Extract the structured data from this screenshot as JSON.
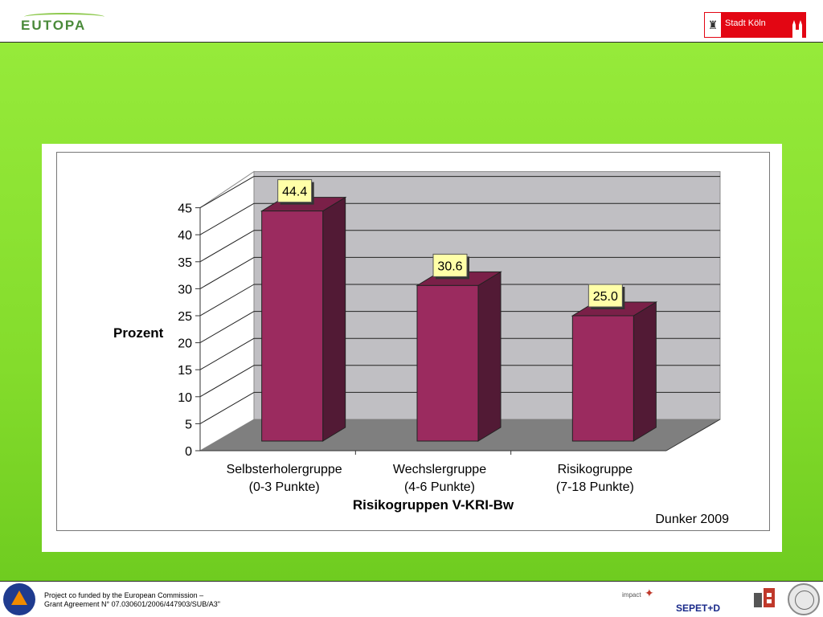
{
  "header": {
    "left_logo_text": "EUTOPA",
    "right_logo_text": "Stadt Köln"
  },
  "colors": {
    "slide_green": "#8ee136",
    "bar_front": "#9b2b5f",
    "bar_side": "#521a35",
    "bar_top": "#7a2048",
    "back_wall": "#c0bfc3",
    "floor": "#7f7f7f",
    "label_bg": "#ffffa8"
  },
  "chart_data": {
    "type": "bar",
    "categories": [
      [
        "Selbsterholergruppe",
        "(0-3 Punkte)"
      ],
      [
        "Wechslergruppe",
        "(4-6 Punkte)"
      ],
      [
        "Risikogruppe",
        "(7-18 Punkte)"
      ]
    ],
    "values": [
      44.4,
      30.6,
      25.0
    ],
    "value_labels": [
      "44.4",
      "30.6",
      "25.0"
    ],
    "xlabel": "Risikogruppen V-KRI-Bw",
    "ylabel": "Prozent",
    "ylim": [
      0,
      45
    ],
    "yticks": [
      0,
      5,
      10,
      15,
      20,
      25,
      30,
      35,
      40,
      45
    ],
    "grid": true,
    "three_d": true
  },
  "source_note": "Dunker 2009",
  "footer": {
    "funding_line_1": "Project co funded by the European Commission –",
    "funding_line_2": "Grant Agreement N° 07.030601/2006/447903/SUB/A3\"",
    "impact_logo_text": "impact",
    "sepet_label": "SEPET+D"
  }
}
